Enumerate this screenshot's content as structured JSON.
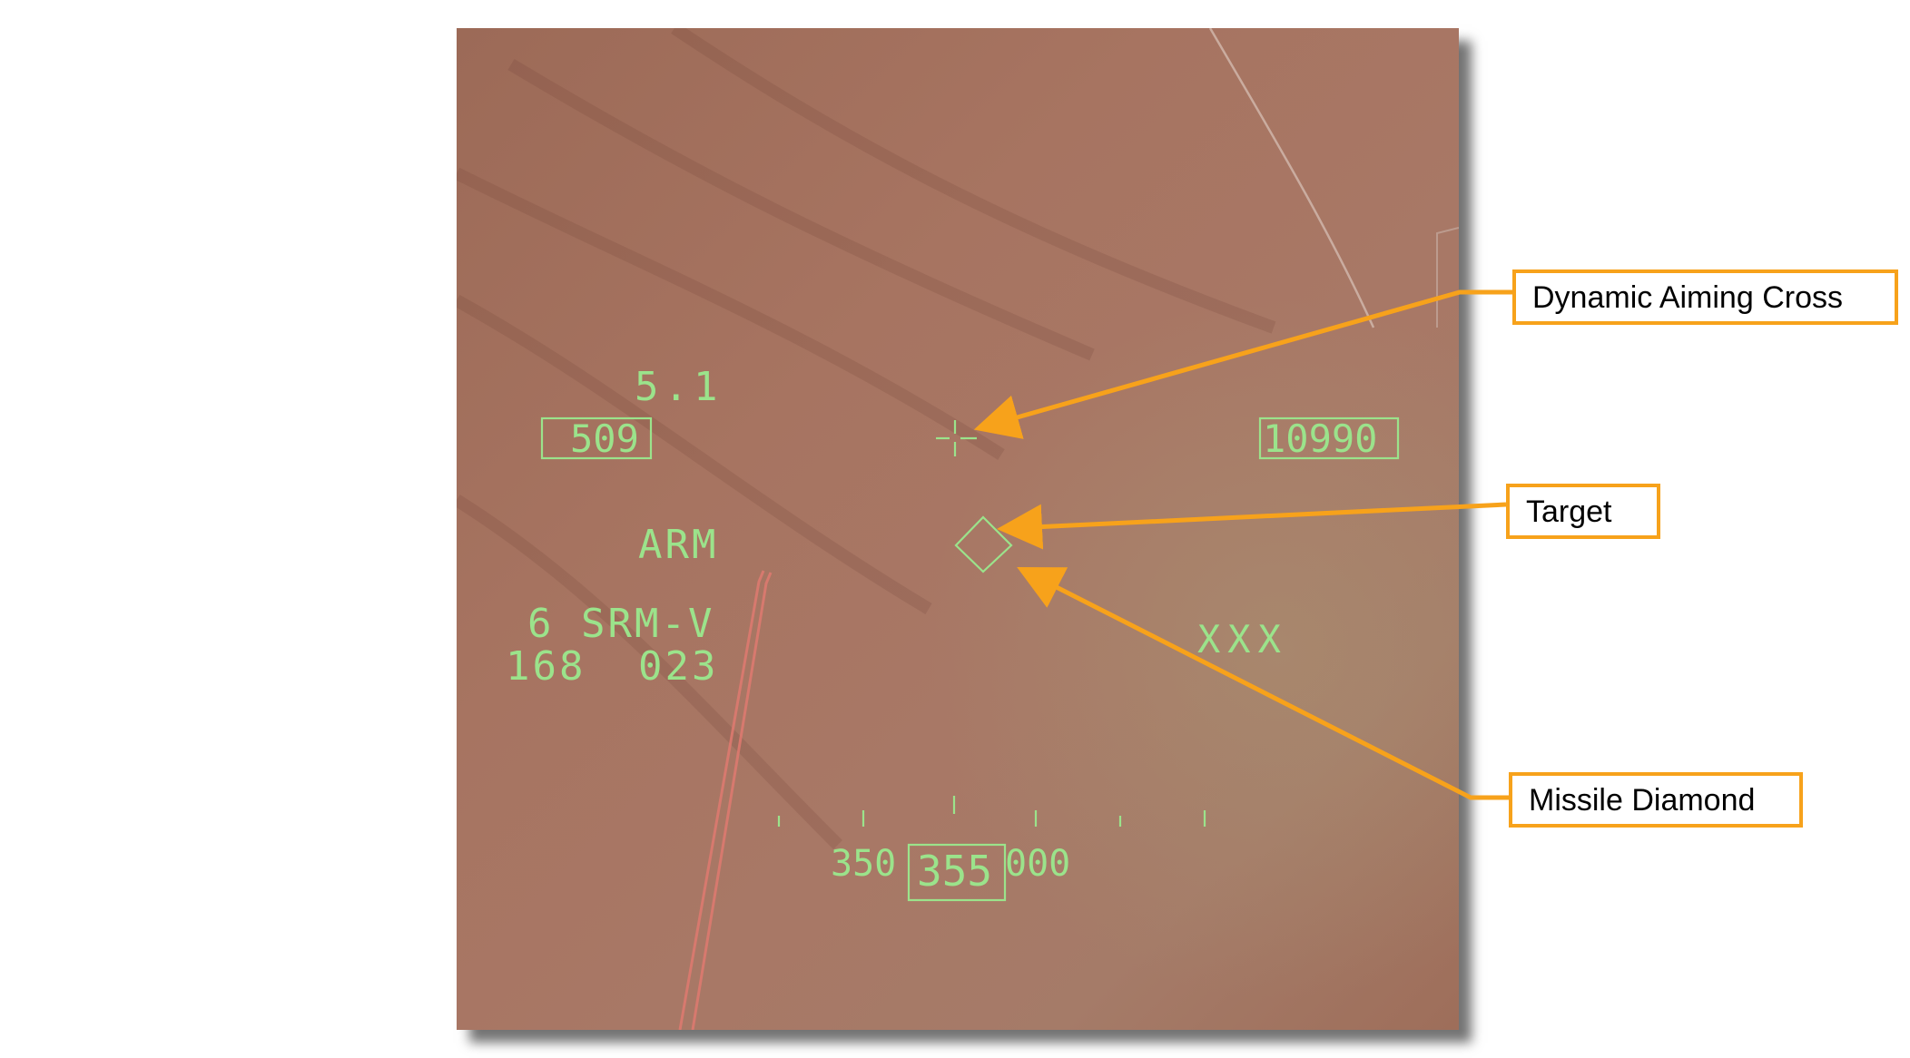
{
  "hud": {
    "range_readout": "5.1",
    "airspeed_box": "509",
    "altitude_box": "10990",
    "master_mode": "ARM",
    "weapon_line": "6 SRM-V",
    "timers_left": "168",
    "timers_right": "023",
    "target_status": "XXX",
    "heading_scale": {
      "left_label": "350",
      "current_heading": "355",
      "right_label": "000"
    }
  },
  "callouts": [
    {
      "id": "dynamic-aiming-cross",
      "label": "Dynamic Aiming Cross"
    },
    {
      "id": "target",
      "label": "Target"
    },
    {
      "id": "missile-diamond",
      "label": "Missile Diamond"
    }
  ],
  "colors": {
    "hud_symbology": "#9BE38B",
    "callout_accent": "#F7A21B",
    "terrain_base": "#A06E5C"
  }
}
